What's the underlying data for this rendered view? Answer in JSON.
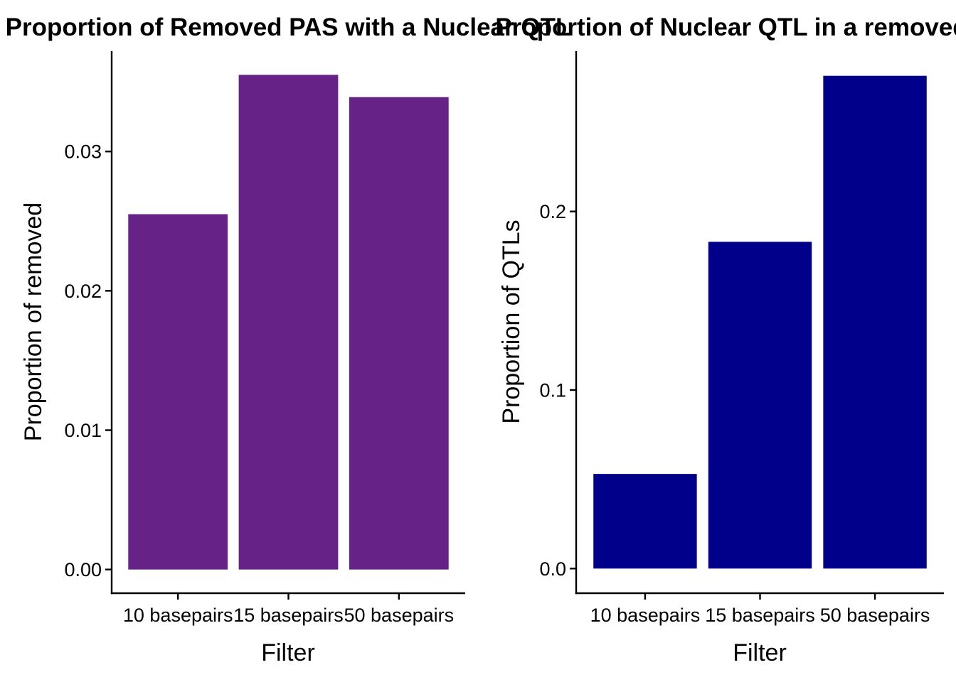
{
  "chart_data": [
    {
      "type": "bar",
      "title": "Proportion of Removed PAS with a Nuclear QTL",
      "xlabel": "Filter",
      "ylabel": "Proportion of removed",
      "categories": [
        "10 basepairs",
        "15 basepairs",
        "50 basepairs"
      ],
      "values": [
        0.0255,
        0.0355,
        0.0339
      ],
      "ylim": [
        -0.0017,
        0.0372
      ],
      "yticks": [
        0.0,
        0.01,
        0.02,
        0.03
      ],
      "ytick_labels": [
        "0.00",
        "0.01",
        "0.02",
        "0.03"
      ],
      "bar_color": "#662287",
      "grid": false,
      "legend": "none"
    },
    {
      "type": "bar",
      "title": "Proportion of Nuclear QTL in a removed PAS",
      "xlabel": "Filter",
      "ylabel": "Proportion of QTLs",
      "categories": [
        "10 basepairs",
        "15 basepairs",
        "50 basepairs"
      ],
      "values": [
        0.053,
        0.183,
        0.276
      ],
      "ylim": [
        -0.0138,
        0.2898
      ],
      "yticks": [
        0.0,
        0.1,
        0.2
      ],
      "ytick_labels": [
        "0.0",
        "0.1",
        "0.2"
      ],
      "bar_color": "#00008B",
      "grid": false,
      "legend": "none"
    }
  ]
}
